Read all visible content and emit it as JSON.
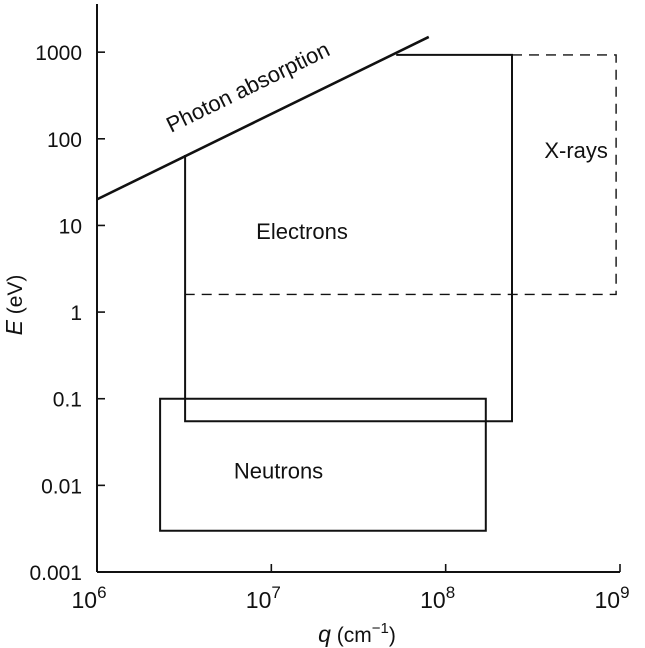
{
  "chart_data": {
    "type": "area",
    "x_scale": "log",
    "y_scale": "log",
    "xlim": [
      1000000,
      1000000000
    ],
    "ylim": [
      0.001,
      4000
    ],
    "xlabel": {
      "base": "q",
      "unit": " (cm",
      "exp": "−1",
      "close": ")"
    },
    "ylabel": {
      "base": "E",
      "unit": " (eV)"
    },
    "x_ticks": [
      {
        "value": 1000000,
        "base": "10",
        "exp": "6"
      },
      {
        "value": 10000000,
        "base": "10",
        "exp": "7"
      },
      {
        "value": 100000000,
        "base": "10",
        "exp": "8"
      },
      {
        "value": 1000000000,
        "base": "10",
        "exp": "9"
      }
    ],
    "y_ticks": [
      {
        "value": 0.001,
        "label": "0.001"
      },
      {
        "value": 0.01,
        "label": "0.01"
      },
      {
        "value": 0.1,
        "label": "0.1"
      },
      {
        "value": 1,
        "label": "1"
      },
      {
        "value": 10,
        "label": "10"
      },
      {
        "value": 100,
        "label": "100"
      },
      {
        "value": 1000,
        "label": "1000"
      }
    ],
    "line": {
      "label": "Photon absorption",
      "points": [
        [
          1000000,
          20
        ],
        [
          80000000,
          1500
        ]
      ]
    },
    "regions": [
      {
        "label": "Electrons",
        "style": "solid",
        "points": [
          [
            3200000,
            65
          ],
          [
            3200000,
            0.055
          ],
          [
            240000000,
            0.055
          ],
          [
            240000000,
            930
          ],
          [
            52000000,
            930
          ]
        ],
        "label_at": [
          15000000,
          7
        ]
      },
      {
        "label": "X-rays",
        "style": "dashed",
        "points": [
          [
            240000000,
            930
          ],
          [
            950000000,
            930
          ],
          [
            950000000,
            1.6
          ],
          [
            3200000,
            1.6
          ]
        ],
        "label_at": [
          560000000,
          60
        ]
      },
      {
        "label": "Neutrons",
        "style": "solid",
        "points": [
          [
            2300000,
            0.1
          ],
          [
            170000000,
            0.1
          ],
          [
            170000000,
            0.003
          ],
          [
            2300000,
            0.003
          ]
        ],
        "label_at": [
          11000000,
          0.012
        ]
      }
    ]
  }
}
